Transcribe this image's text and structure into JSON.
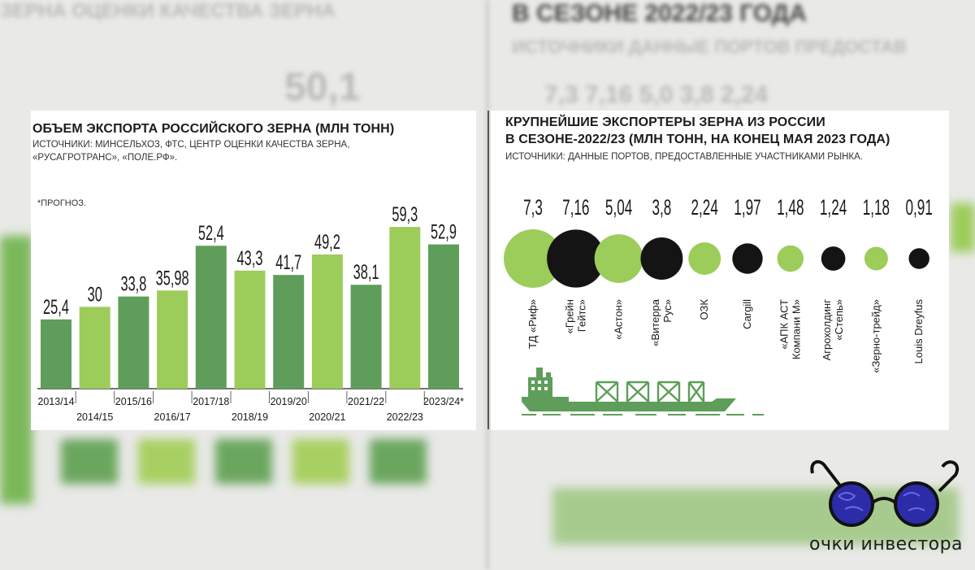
{
  "left_chart": {
    "title": "ОБЪЕМ ЭКСПОРТА РОССИЙСКОГО ЗЕРНА (МЛН ТОНН)",
    "source_line1": "ИСТОЧНИКИ: МИНСЕЛЬХОЗ, ФТС, ЦЕНТР ОЦЕНКИ КАЧЕСТВА ЗЕРНА,",
    "source_line2": "«РУСАГРОТРАНС», «ПОЛЕ.РФ».",
    "note": "*ПРОГНОЗ."
  },
  "right_chart": {
    "title_line1": "КРУПНЕЙШИЕ ЭКСПОРТЕРЫ ЗЕРНА ИЗ РОССИИ",
    "title_line2": "В СЕЗОНЕ-2022/23 (МЛН ТОНН, НА КОНЕЦ МАЯ 2023 ГОДА)",
    "source": "ИСТОЧНИКИ: ДАННЫЕ ПОРТОВ, ПРЕДОСТАВЛЕННЫЕ УЧАСТНИКАМИ РЫНКА."
  },
  "colors": {
    "dark_green": "#5e9e5a",
    "light_green": "#9ccc5a",
    "black": "#141414",
    "ship_green": "#5e9e5a"
  },
  "logo": {
    "text": "очки инвестора"
  },
  "chart_data": [
    {
      "type": "bar",
      "categories": [
        "2013/14",
        "2014/15",
        "2015/16",
        "2016/17",
        "2017/18",
        "2018/19",
        "2019/20",
        "2020/21",
        "2021/22",
        "2022/23",
        "2023/24*"
      ],
      "values": [
        25.4,
        30,
        33.8,
        35.98,
        52.4,
        43.3,
        41.7,
        49.2,
        38.1,
        59.3,
        52.9
      ],
      "value_labels": [
        "25,4",
        "30",
        "33,8",
        "35,98",
        "52,4",
        "43,3",
        "41,7",
        "49,2",
        "38,1",
        "59,3",
        "52,9"
      ],
      "bar_colors": [
        "dark",
        "light",
        "dark",
        "light",
        "dark",
        "light",
        "dark",
        "light",
        "dark",
        "light",
        "dark"
      ],
      "title": "ОБЪЕМ ЭКСПОРТА РОССИЙСКОГО ЗЕРНА (МЛН ТОНН)",
      "ylim": [
        0,
        65
      ]
    },
    {
      "type": "scatter",
      "categories": [
        "ТД «Риф»",
        "«Грейн Гейтс»",
        "«Астон»",
        "«Витерра Рус»",
        "ОЗК",
        "Cargill",
        "«АПК АСТ Компани М»",
        "Агрохолдинг «Степь»",
        "«Зерно-трейд»",
        "Louis Dreyfus"
      ],
      "label_lines": [
        [
          "ТД «Риф»"
        ],
        [
          "«Грейн",
          "Гейтс»"
        ],
        [
          "«Астон»"
        ],
        [
          "«Витерра",
          "Рус»"
        ],
        [
          "ОЗК"
        ],
        [
          "Cargill"
        ],
        [
          "«АПК АСТ",
          "Компани М»"
        ],
        [
          "Агрохолдинг",
          "«Степь»"
        ],
        [
          "«Зерно-трейд»"
        ],
        [
          "Louis Dreyfus"
        ]
      ],
      "values": [
        7.3,
        7.16,
        5.04,
        3.8,
        2.24,
        1.97,
        1.48,
        1.24,
        1.18,
        0.91
      ],
      "value_labels": [
        "7,3",
        "7,16",
        "5,04",
        "3,8",
        "2,24",
        "1,97",
        "1,48",
        "1,24",
        "1,18",
        "0,91"
      ],
      "bubble_colors": [
        "light",
        "black",
        "light",
        "black",
        "light",
        "black",
        "light",
        "black",
        "light",
        "black"
      ],
      "title": "КРУПНЕЙШИЕ ЭКСПОРТЕРЫ ЗЕРНА ИЗ РОССИИ В СЕЗОНЕ-2022/23 (МЛН ТОНН, НА КОНЕЦ МАЯ 2023 ГОДА)"
    }
  ]
}
